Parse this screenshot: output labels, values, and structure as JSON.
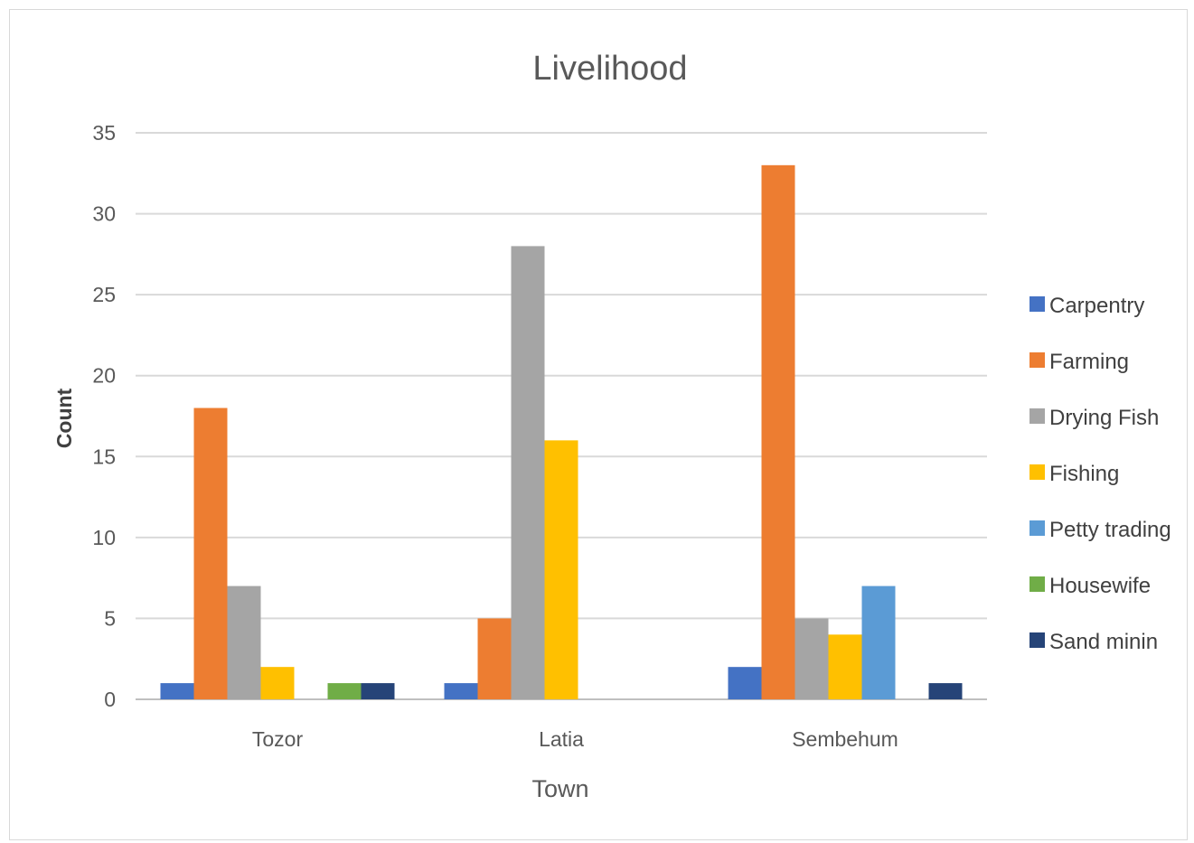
{
  "chart_data": {
    "type": "bar",
    "title": "Livelihood",
    "xlabel": "Town",
    "ylabel": "Count",
    "ylim": [
      0,
      35
    ],
    "yticks": [
      0,
      5,
      10,
      15,
      20,
      25,
      30,
      35
    ],
    "grid": true,
    "legend_position": "right",
    "categories": [
      "Tozor",
      "Latia",
      "Sembehum"
    ],
    "series": [
      {
        "name": "Carpentry",
        "color": "#4472c4",
        "values": [
          1,
          1,
          2
        ]
      },
      {
        "name": "Farming",
        "color": "#ed7d31",
        "values": [
          18,
          5,
          33
        ]
      },
      {
        "name": "Drying Fish",
        "color": "#a5a5a5",
        "values": [
          7,
          28,
          5
        ]
      },
      {
        "name": "Fishing",
        "color": "#ffc000",
        "values": [
          2,
          16,
          4
        ]
      },
      {
        "name": "Petty trading",
        "color": "#5b9bd5",
        "values": [
          0,
          0,
          7
        ]
      },
      {
        "name": "Housewife",
        "color": "#70ad47",
        "values": [
          1,
          0,
          0
        ]
      },
      {
        "name": "Sand minin",
        "color": "#264478",
        "values": [
          1,
          0,
          1
        ]
      }
    ]
  }
}
